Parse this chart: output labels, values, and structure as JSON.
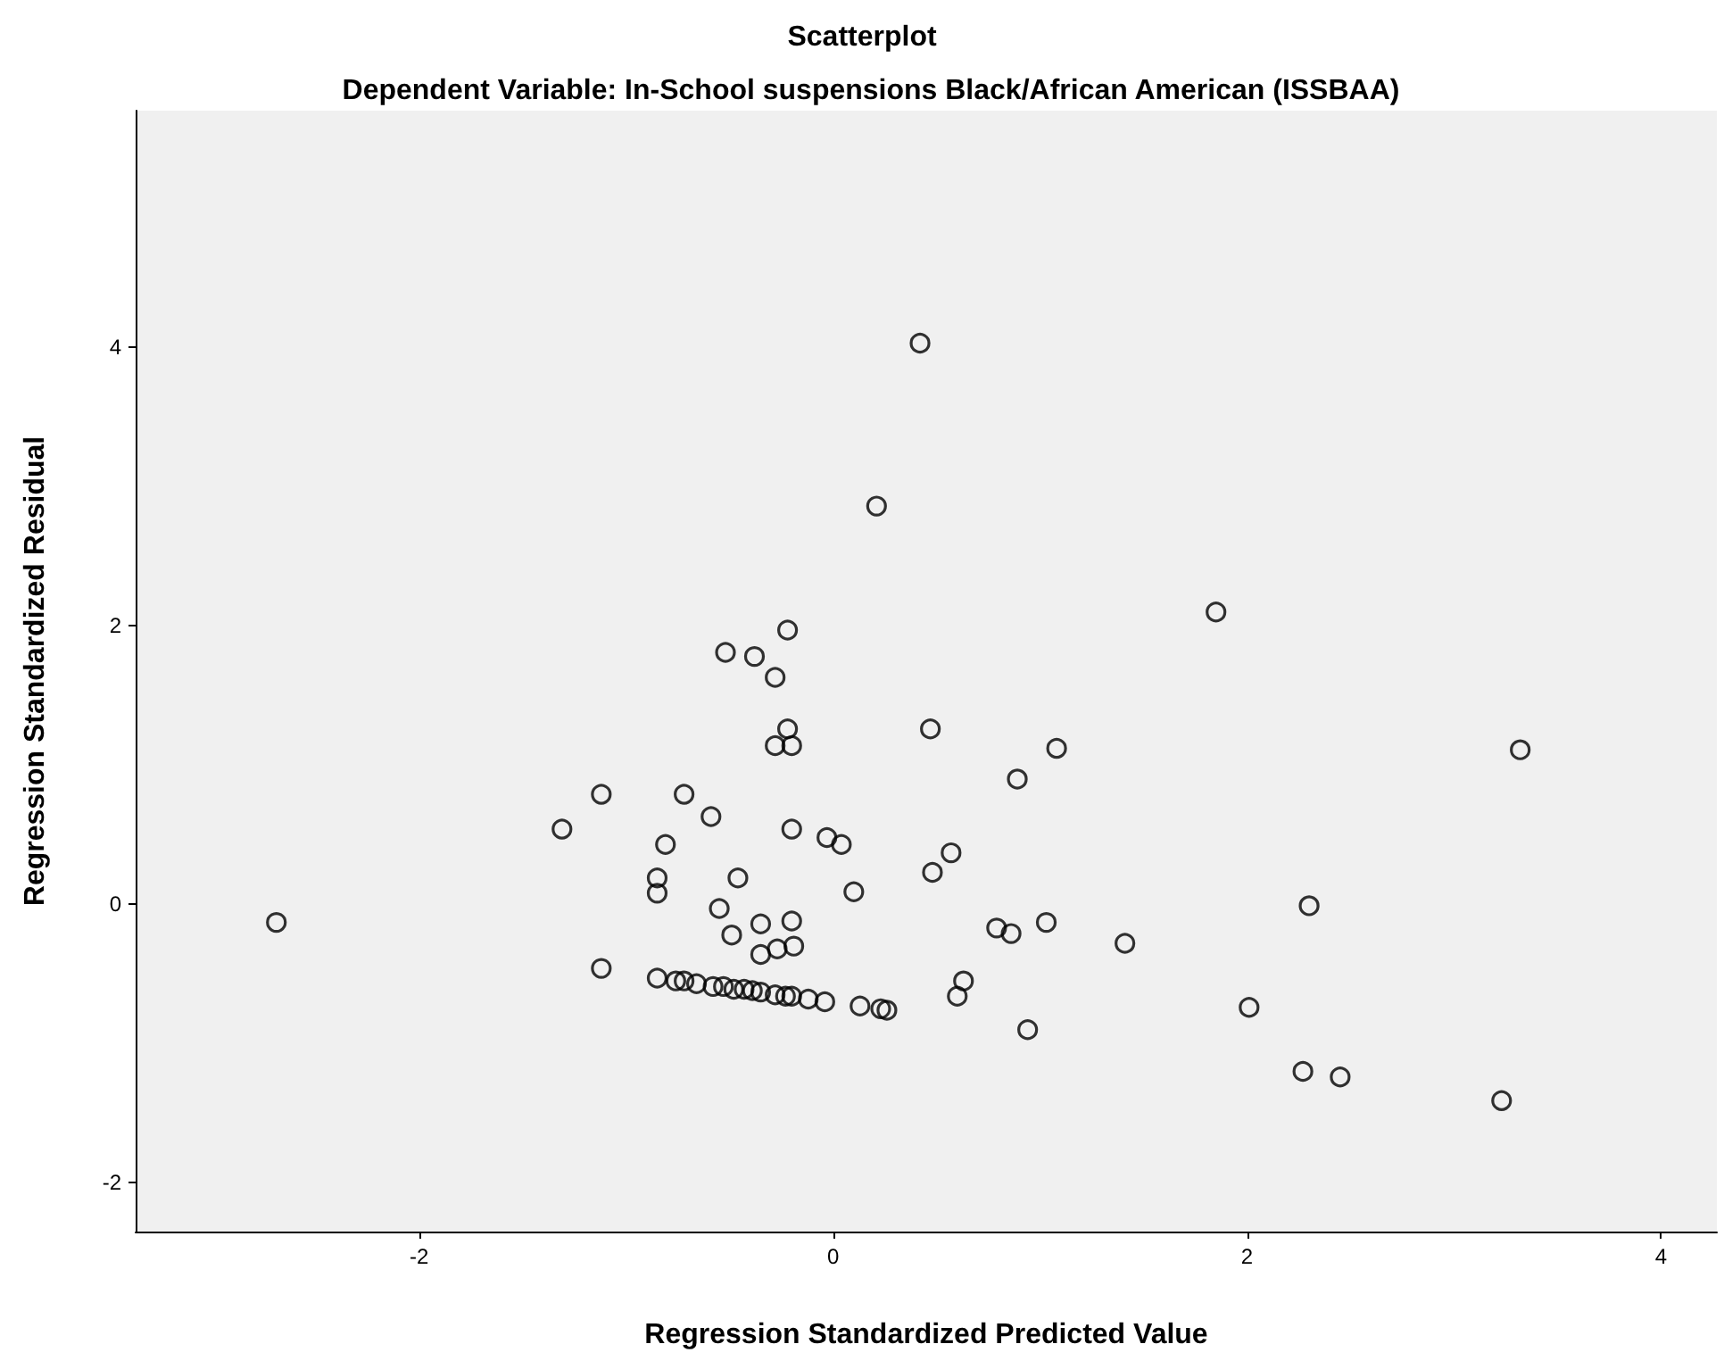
{
  "chart_data": {
    "type": "scatter",
    "title": "Scatterplot",
    "subtitle": "Dependent Variable: In-School suspensions Black/African American (ISSBAA)",
    "xlabel": "Regression Standardized Predicted Value",
    "ylabel": "Regression Standardized Residual",
    "x": [
      0.42,
      0.21,
      -0.22,
      -0.52,
      -0.38,
      -0.28,
      -0.22,
      -0.28,
      -0.2,
      0.47,
      1.08,
      0.89,
      3.32,
      1.85,
      0.57,
      0.48,
      0.79,
      0.86,
      1.03,
      1.41,
      2.3,
      0.63,
      0.6,
      0.94,
      2.01,
      2.27,
      2.45,
      3.23,
      -2.69,
      -1.31,
      -1.12,
      -0.72,
      -0.59,
      -0.81,
      -0.2,
      -0.03,
      0.04,
      -0.85,
      -0.85,
      -0.46,
      0.1,
      -0.55,
      -0.49,
      -0.35,
      -0.2,
      -0.35,
      -0.27,
      -0.19,
      -1.12,
      -0.85,
      -0.76,
      -0.72,
      -0.66,
      -0.58,
      -0.53,
      -0.48,
      -0.43,
      -0.39,
      -0.35,
      -0.28,
      -0.23,
      -0.2,
      -0.12,
      -0.04,
      0.13,
      0.23,
      0.26
    ],
    "series": [
      {
        "color": "#000000",
        "values": [
          4.03,
          2.86,
          1.97,
          1.81,
          1.78,
          1.63,
          1.26,
          1.14,
          1.14,
          1.26,
          1.12,
          0.9,
          1.11,
          2.1,
          0.37,
          0.23,
          -0.17,
          -0.21,
          -0.13,
          -0.28,
          -0.01,
          -0.55,
          -0.66,
          -0.9,
          -0.74,
          -1.2,
          -1.24,
          -1.41,
          -0.13,
          0.54,
          0.79,
          0.79,
          0.63,
          0.43,
          0.54,
          0.48,
          0.43,
          0.19,
          0.08,
          0.19,
          0.09,
          -0.03,
          -0.22,
          -0.14,
          -0.12,
          -0.36,
          -0.32,
          -0.3,
          -0.46,
          -0.53,
          -0.55,
          -0.55,
          -0.57,
          -0.59,
          -0.59,
          -0.61,
          -0.61,
          -0.62,
          -0.63,
          -0.65,
          -0.66,
          -0.66,
          -0.68,
          -0.7,
          -0.73,
          -0.75,
          -0.76
        ]
      }
    ],
    "xlim": [
      -3.37,
      4.27
    ],
    "ylim": [
      -2.35,
      5.7
    ],
    "xticks": [
      -2,
      0,
      2,
      4
    ],
    "yticks": [
      -2,
      0,
      2,
      4
    ],
    "grid": false,
    "marker": "circle"
  }
}
